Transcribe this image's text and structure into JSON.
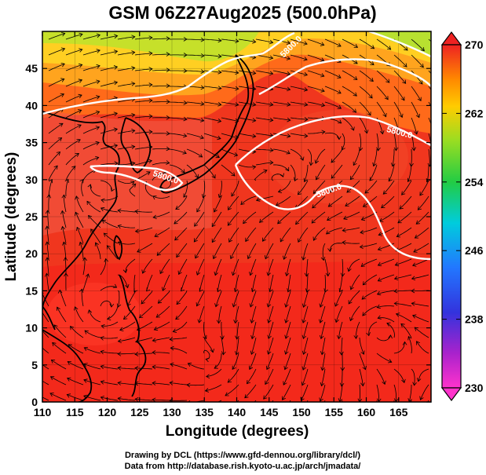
{
  "chart_data": {
    "type": "heatmap",
    "title": "GSM 06Z27Aug2025 (500.0hPa)",
    "xlabel": "Longitude (degrees)",
    "ylabel": "Latitude  (degrees)",
    "xlim": [
      110,
      170
    ],
    "ylim": [
      0,
      50
    ],
    "x_ticks": [
      "110",
      "115",
      "120",
      "125",
      "130",
      "135",
      "140",
      "145",
      "150",
      "155",
      "160",
      "165"
    ],
    "y_ticks": [
      "0",
      "5",
      "10",
      "15",
      "20",
      "25",
      "30",
      "35",
      "40",
      "45"
    ],
    "colorbar": {
      "min": 230,
      "max": 270,
      "ticks": [
        "270",
        "262",
        "254",
        "246",
        "238",
        "230"
      ]
    },
    "contours": [
      {
        "label": "5800.0"
      },
      {
        "label": "5800.0"
      },
      {
        "label": "5800.0"
      },
      {
        "label": "5800.0"
      }
    ],
    "streamlines": "wind vectors (streamlines) overlaid",
    "credits": [
      "Drawing by DCL (https://www.gfd-dennou.org/library/dcl/)",
      "Data from http://database.rish.kyoto-u.ac.jp/arch/jmadata/"
    ]
  }
}
